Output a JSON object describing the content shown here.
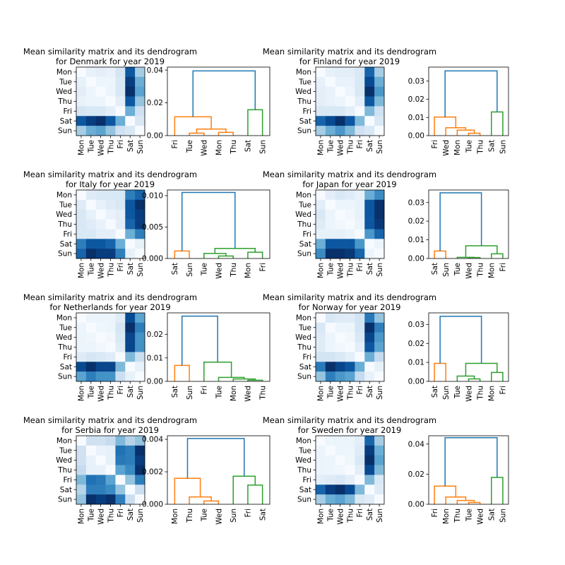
{
  "colors": {
    "orange": "#ff7f0e",
    "green": "#2ca02c",
    "blue": "#1f77b4",
    "colormap": "Blues"
  },
  "chart_data": [
    {
      "type": "heatmap+dendrogram",
      "title": [
        "Mean similarity matrix and its dendrogram",
        "for Denmark for year 2019"
      ],
      "days": [
        "Mon",
        "Tue",
        "Wed",
        "Thu",
        "Fri",
        "Sat",
        "Sun"
      ],
      "matrix": [
        [
          0,
          0.08,
          0.1,
          0.07,
          0.17,
          0.85,
          0.35
        ],
        [
          0.08,
          0,
          0.05,
          0.05,
          0.15,
          0.95,
          0.5
        ],
        [
          0.1,
          0.05,
          0,
          0.05,
          0.15,
          1,
          0.55
        ],
        [
          0.07,
          0.05,
          0.05,
          0,
          0.1,
          0.85,
          0.4
        ],
        [
          0.17,
          0.15,
          0.15,
          0.1,
          0,
          0.5,
          0.2
        ],
        [
          0.85,
          0.95,
          1,
          0.85,
          0.5,
          0,
          0.15
        ],
        [
          0.35,
          0.5,
          0.55,
          0.4,
          0.2,
          0.15,
          0
        ]
      ],
      "dendrogram": {
        "leaves": [
          "Fri",
          "Tue",
          "Wed",
          "Mon",
          "Thu",
          "Sat",
          "Sun"
        ],
        "ylim": [
          0,
          0.0418
        ],
        "yticks": [
          "0.00",
          "0.02",
          "0.04"
        ],
        "merges": [
          {
            "a": "Tue",
            "b": "Wed",
            "h": 0.0015,
            "color": "orange"
          },
          {
            "a": "Mon",
            "b": "Thu",
            "h": 0.002,
            "color": "orange"
          },
          {
            "a": "#0",
            "b": "#1",
            "h": 0.004,
            "color": "orange"
          },
          {
            "a": "Fri",
            "b": "#2",
            "h": 0.0115,
            "color": "orange"
          },
          {
            "a": "Sat",
            "b": "Sun",
            "h": 0.0158,
            "color": "green"
          },
          {
            "a": "#3",
            "b": "#4",
            "h": 0.0395,
            "color": "blue"
          }
        ]
      }
    },
    {
      "type": "heatmap+dendrogram",
      "title": [
        "Mean similarity matrix and its dendrogram",
        "for Finland for year 2019"
      ],
      "days": [
        "Mon",
        "Tue",
        "Wed",
        "Thu",
        "Fri",
        "Sat",
        "Sun"
      ],
      "matrix": [
        [
          0,
          0.08,
          0.1,
          0.1,
          0.15,
          0.8,
          0.35
        ],
        [
          0.08,
          0,
          0.07,
          0.07,
          0.15,
          0.9,
          0.5
        ],
        [
          0.1,
          0.07,
          0,
          0.05,
          0.15,
          1,
          0.6
        ],
        [
          0.1,
          0.07,
          0.05,
          0,
          0.1,
          0.85,
          0.45
        ],
        [
          0.15,
          0.15,
          0.15,
          0.1,
          0,
          0.45,
          0.2
        ],
        [
          0.8,
          0.9,
          1,
          0.85,
          0.45,
          0,
          0.15
        ],
        [
          0.35,
          0.5,
          0.6,
          0.45,
          0.2,
          0.15,
          0
        ]
      ],
      "dendrogram": {
        "leaves": [
          "Fri",
          "Wed",
          "Mon",
          "Tue",
          "Thu",
          "Sat",
          "Sun"
        ],
        "ylim": [
          0,
          0.0377
        ],
        "yticks": [
          "0.00",
          "0.01",
          "0.02",
          "0.03"
        ],
        "merges": [
          {
            "a": "Tue",
            "b": "Thu",
            "h": 0.0013,
            "color": "orange"
          },
          {
            "a": "Mon",
            "b": "#0",
            "h": 0.003,
            "color": "orange"
          },
          {
            "a": "Wed",
            "b": "#1",
            "h": 0.0043,
            "color": "orange"
          },
          {
            "a": "Fri",
            "b": "#2",
            "h": 0.0102,
            "color": "orange"
          },
          {
            "a": "Sat",
            "b": "Sun",
            "h": 0.013,
            "color": "green"
          },
          {
            "a": "#3",
            "b": "#4",
            "h": 0.0356,
            "color": "blue"
          }
        ]
      }
    },
    {
      "type": "heatmap+dendrogram",
      "title": [
        "Mean similarity matrix and its dendrogram",
        "for Italy for year 2019"
      ],
      "days": [
        "Mon",
        "Tue",
        "Wed",
        "Thu",
        "Fri",
        "Sat",
        "Sun"
      ],
      "matrix": [
        [
          0,
          0.12,
          0.15,
          0.15,
          0.15,
          0.7,
          0.8
        ],
        [
          0.12,
          0,
          0.08,
          0.12,
          0.15,
          0.85,
          1
        ],
        [
          0.15,
          0.08,
          0,
          0.07,
          0.1,
          0.85,
          0.95
        ],
        [
          0.15,
          0.12,
          0.07,
          0,
          0.1,
          0.8,
          0.95
        ],
        [
          0.15,
          0.15,
          0.1,
          0.1,
          0,
          0.5,
          0.7
        ],
        [
          0.7,
          0.85,
          0.85,
          0.8,
          0.5,
          0,
          0.08
        ],
        [
          0.8,
          1,
          0.95,
          0.95,
          0.7,
          0.08,
          0
        ]
      ],
      "dendrogram": {
        "leaves": [
          "Sat",
          "Sun",
          "Tue",
          "Wed",
          "Thu",
          "Mon",
          "Fri"
        ],
        "ylim": [
          0,
          0.0109
        ],
        "yticks": [
          "0.000",
          "0.005",
          "0.010"
        ],
        "merges": [
          {
            "a": "Sat",
            "b": "Sun",
            "h": 0.0012,
            "color": "orange"
          },
          {
            "a": "Wed",
            "b": "Thu",
            "h": 0.0004,
            "color": "green"
          },
          {
            "a": "Tue",
            "b": "#1",
            "h": 0.0008,
            "color": "green"
          },
          {
            "a": "Mon",
            "b": "Fri",
            "h": 0.001,
            "color": "green"
          },
          {
            "a": "#2",
            "b": "#3",
            "h": 0.0016,
            "color": "green"
          },
          {
            "a": "#0",
            "b": "#4",
            "h": 0.0105,
            "color": "blue"
          }
        ]
      }
    },
    {
      "type": "heatmap+dendrogram",
      "title": [
        "Mean similarity matrix and its dendrogram",
        "for Japan for year 2019"
      ],
      "days": [
        "Mon",
        "Tue",
        "Wed",
        "Thu",
        "Fri",
        "Sat",
        "Sun"
      ],
      "matrix": [
        [
          0,
          0.1,
          0.15,
          0.12,
          0.08,
          0.5,
          0.65
        ],
        [
          0.1,
          0,
          0.05,
          0.05,
          0.08,
          0.85,
          1
        ],
        [
          0.15,
          0.05,
          0,
          0.03,
          0.08,
          0.85,
          1
        ],
        [
          0.12,
          0.05,
          0.03,
          0,
          0.06,
          0.85,
          0.97
        ],
        [
          0.08,
          0.08,
          0.08,
          0.06,
          0,
          0.6,
          0.8
        ],
        [
          0.5,
          0.85,
          0.85,
          0.85,
          0.6,
          0,
          0.05
        ],
        [
          0.65,
          1,
          1,
          0.97,
          0.8,
          0.05,
          0
        ]
      ],
      "dendrogram": {
        "leaves": [
          "Sat",
          "Sun",
          "Tue",
          "Wed",
          "Thu",
          "Mon",
          "Fri"
        ],
        "ylim": [
          0,
          0.0367
        ],
        "yticks": [
          "0.00",
          "0.01",
          "0.02",
          "0.03"
        ],
        "merges": [
          {
            "a": "Sat",
            "b": "Sun",
            "h": 0.004,
            "color": "orange"
          },
          {
            "a": "Wed",
            "b": "Thu",
            "h": 0.0005,
            "color": "green"
          },
          {
            "a": "Tue",
            "b": "#1",
            "h": 0.0006,
            "color": "green"
          },
          {
            "a": "Mon",
            "b": "Fri",
            "h": 0.0025,
            "color": "green"
          },
          {
            "a": "#2",
            "b": "#3",
            "h": 0.0068,
            "color": "green"
          },
          {
            "a": "#0",
            "b": "#4",
            "h": 0.0352,
            "color": "blue"
          }
        ]
      }
    },
    {
      "type": "heatmap+dendrogram",
      "title": [
        "Mean similarity matrix and its dendrogram",
        "for Netherlands for year 2019"
      ],
      "days": [
        "Mon",
        "Tue",
        "Wed",
        "Thu",
        "Fri",
        "Sat",
        "Sun"
      ],
      "matrix": [
        [
          0,
          0.05,
          0.05,
          0.05,
          0.12,
          0.9,
          0.55
        ],
        [
          0.05,
          0,
          0.04,
          0.05,
          0.17,
          1,
          0.7
        ],
        [
          0.05,
          0.04,
          0,
          0.03,
          0.15,
          0.92,
          0.62
        ],
        [
          0.05,
          0.05,
          0.03,
          0,
          0.12,
          0.92,
          0.62
        ],
        [
          0.12,
          0.17,
          0.15,
          0.12,
          0,
          0.45,
          0.22
        ],
        [
          0.9,
          1,
          0.92,
          0.92,
          0.45,
          0,
          0.08
        ],
        [
          0.55,
          0.7,
          0.62,
          0.62,
          0.22,
          0.08,
          0
        ]
      ],
      "dendrogram": {
        "leaves": [
          "Sat",
          "Sun",
          "Fri",
          "Tue",
          "Mon",
          "Wed",
          "Thu"
        ],
        "ylim": [
          0,
          0.0292
        ],
        "yticks": [
          "0.00",
          "0.01",
          "0.02"
        ],
        "merges": [
          {
            "a": "Sat",
            "b": "Sun",
            "h": 0.0068,
            "color": "orange"
          },
          {
            "a": "Wed",
            "b": "Thu",
            "h": 0.0005,
            "color": "green"
          },
          {
            "a": "Mon",
            "b": "#1",
            "h": 0.001,
            "color": "green"
          },
          {
            "a": "Tue",
            "b": "#2",
            "h": 0.0017,
            "color": "green"
          },
          {
            "a": "Fri",
            "b": "#3",
            "h": 0.0082,
            "color": "green"
          },
          {
            "a": "#0",
            "b": "#4",
            "h": 0.0278,
            "color": "blue"
          }
        ]
      }
    },
    {
      "type": "heatmap+dendrogram",
      "title": [
        "Mean similarity matrix and its dendrogram",
        "for Norway for year 2019"
      ],
      "days": [
        "Mon",
        "Tue",
        "Wed",
        "Thu",
        "Fri",
        "Sat",
        "Sun"
      ],
      "matrix": [
        [
          0,
          0.15,
          0.12,
          0.12,
          0.18,
          0.72,
          0.4
        ],
        [
          0.15,
          0,
          0.05,
          0.05,
          0.18,
          1,
          0.7
        ],
        [
          0.12,
          0.05,
          0,
          0.03,
          0.15,
          0.92,
          0.6
        ],
        [
          0.12,
          0.05,
          0.03,
          0,
          0.1,
          0.85,
          0.55
        ],
        [
          0.18,
          0.18,
          0.15,
          0.1,
          0,
          0.5,
          0.25
        ],
        [
          0.72,
          1,
          0.92,
          0.85,
          0.5,
          0,
          0.08
        ],
        [
          0.4,
          0.7,
          0.6,
          0.55,
          0.25,
          0.08,
          0
        ]
      ],
      "dendrogram": {
        "leaves": [
          "Sat",
          "Sun",
          "Tue",
          "Wed",
          "Thu",
          "Mon",
          "Fri"
        ],
        "ylim": [
          0,
          0.0361
        ],
        "yticks": [
          "0.00",
          "0.01",
          "0.02",
          "0.03"
        ],
        "merges": [
          {
            "a": "Sat",
            "b": "Sun",
            "h": 0.0095,
            "color": "orange"
          },
          {
            "a": "Wed",
            "b": "Thu",
            "h": 0.0013,
            "color": "green"
          },
          {
            "a": "Tue",
            "b": "#1",
            "h": 0.0028,
            "color": "green"
          },
          {
            "a": "Mon",
            "b": "Fri",
            "h": 0.0047,
            "color": "green"
          },
          {
            "a": "#2",
            "b": "#3",
            "h": 0.0095,
            "color": "green"
          },
          {
            "a": "#0",
            "b": "#4",
            "h": 0.0343,
            "color": "blue"
          }
        ]
      }
    },
    {
      "type": "heatmap+dendrogram",
      "title": [
        "Mean similarity matrix and its dendrogram",
        "for Serbia for year 2019"
      ],
      "days": [
        "Mon",
        "Tue",
        "Wed",
        "Thu",
        "Fri",
        "Sat",
        "Sun"
      ],
      "matrix": [
        [
          0,
          0.2,
          0.2,
          0.25,
          0.45,
          0.3,
          0.4
        ],
        [
          0.2,
          0,
          0.07,
          0.08,
          0.75,
          0.7,
          1
        ],
        [
          0.2,
          0.07,
          0,
          0.08,
          0.72,
          0.7,
          0.95
        ],
        [
          0.25,
          0.08,
          0.08,
          0,
          0.55,
          0.65,
          1
        ],
        [
          0.45,
          0.75,
          0.72,
          0.55,
          0,
          0.4,
          0.7
        ],
        [
          0.3,
          0.7,
          0.7,
          0.65,
          0.4,
          0,
          0.22
        ],
        [
          0.4,
          1,
          0.95,
          1,
          0.7,
          0.22,
          0
        ]
      ],
      "dendrogram": {
        "leaves": [
          "Mon",
          "Thu",
          "Tue",
          "Wed",
          "Sun",
          "Fri",
          "Sat"
        ],
        "ylim": [
          0,
          0.00422
        ],
        "yticks": [
          "0.000",
          "0.002",
          "0.004"
        ],
        "merges": [
          {
            "a": "Tue",
            "b": "Wed",
            "h": 0.0002,
            "color": "orange"
          },
          {
            "a": "Thu",
            "b": "#0",
            "h": 0.00045,
            "color": "orange"
          },
          {
            "a": "Mon",
            "b": "#1",
            "h": 0.0016,
            "color": "orange"
          },
          {
            "a": "Fri",
            "b": "Sat",
            "h": 0.00118,
            "color": "green"
          },
          {
            "a": "Sun",
            "b": "#3",
            "h": 0.00173,
            "color": "green"
          },
          {
            "a": "#2",
            "b": "#4",
            "h": 0.00405,
            "color": "blue"
          }
        ]
      }
    },
    {
      "type": "heatmap+dendrogram",
      "title": [
        "Mean similarity matrix and its dendrogram",
        "for Sweden for year 2019"
      ],
      "days": [
        "Mon",
        "Tue",
        "Wed",
        "Thu",
        "Fri",
        "Sat",
        "Sun"
      ],
      "matrix": [
        [
          0,
          0.05,
          0.06,
          0.06,
          0.1,
          0.8,
          0.35
        ],
        [
          0.05,
          0,
          0.05,
          0.05,
          0.12,
          0.95,
          0.5
        ],
        [
          0.06,
          0.05,
          0,
          0.04,
          0.15,
          1,
          0.55
        ],
        [
          0.06,
          0.05,
          0.04,
          0,
          0.1,
          0.9,
          0.45
        ],
        [
          0.1,
          0.12,
          0.15,
          0.1,
          0,
          0.45,
          0.15
        ],
        [
          0.8,
          0.95,
          1,
          0.9,
          0.45,
          0,
          0.12
        ],
        [
          0.35,
          0.5,
          0.55,
          0.45,
          0.15,
          0.12,
          0
        ]
      ],
      "dendrogram": {
        "leaves": [
          "Fri",
          "Mon",
          "Thu",
          "Tue",
          "Wed",
          "Sat",
          "Sun"
        ],
        "ylim": [
          0,
          0.0455
        ],
        "yticks": [
          "0.00",
          "0.02",
          "0.04"
        ],
        "merges": [
          {
            "a": "Tue",
            "b": "Wed",
            "h": 0.0012,
            "color": "orange"
          },
          {
            "a": "Thu",
            "b": "#0",
            "h": 0.0025,
            "color": "orange"
          },
          {
            "a": "Mon",
            "b": "#1",
            "h": 0.0048,
            "color": "orange"
          },
          {
            "a": "Fri",
            "b": "#2",
            "h": 0.0121,
            "color": "orange"
          },
          {
            "a": "Sat",
            "b": "Sun",
            "h": 0.0178,
            "color": "green"
          },
          {
            "a": "#3",
            "b": "#4",
            "h": 0.0442,
            "color": "blue"
          }
        ]
      }
    }
  ]
}
